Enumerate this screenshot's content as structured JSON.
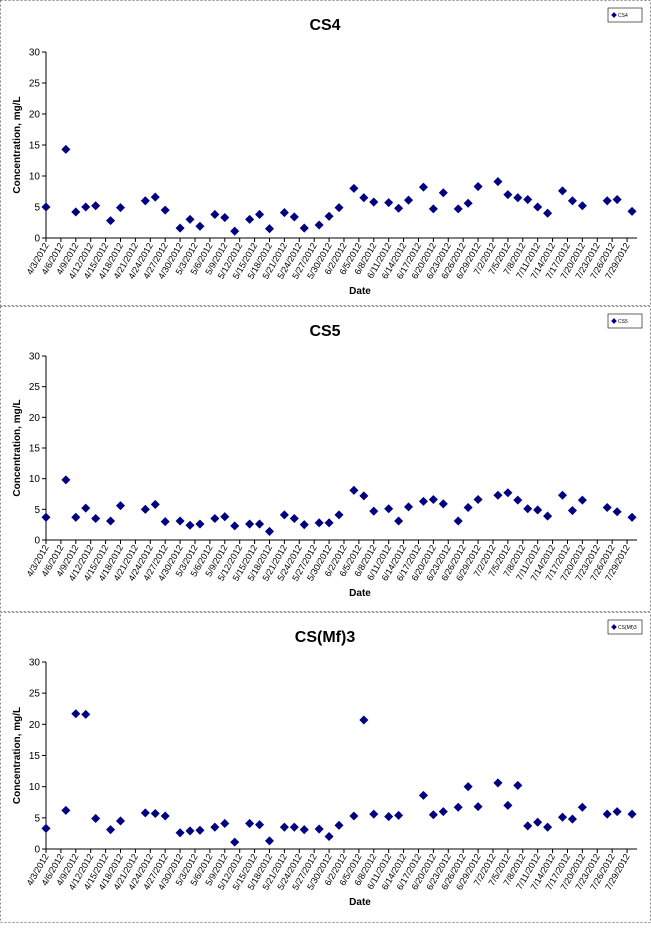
{
  "colors": {
    "marker": "#000080",
    "axis": "#000000",
    "frame": "#888888",
    "background": "#ffffff"
  },
  "chart_data": [
    {
      "type": "scatter",
      "title": "CS4",
      "xlabel": "Date",
      "ylabel": "Concentration, mg/L",
      "legend": "CS4",
      "legend_position": "top-right",
      "grid": false,
      "ylim": [
        0,
        30
      ],
      "yticks": [
        "0",
        "5",
        "10",
        "15",
        "20",
        "25",
        "30"
      ],
      "xticks": [
        "4/3/2012",
        "4/6/2012",
        "4/9/2012",
        "4/12/2012",
        "4/15/2012",
        "4/18/2012",
        "4/21/2012",
        "4/24/2012",
        "4/27/2012",
        "4/30/2012",
        "5/3/2012",
        "5/6/2012",
        "5/9/2012",
        "5/12/2012",
        "5/15/2012",
        "5/18/2012",
        "5/21/2012",
        "5/24/2012",
        "5/27/2012",
        "5/30/2012",
        "6/2/2012",
        "6/5/2012",
        "6/8/2012",
        "6/11/2012",
        "6/14/2012",
        "6/17/2012",
        "6/20/2012",
        "6/23/2012",
        "6/26/2012",
        "6/29/2012",
        "7/2/2012",
        "7/5/2012",
        "7/8/2012",
        "7/11/2012",
        "7/14/2012",
        "7/17/2012",
        "7/20/2012",
        "7/23/2012",
        "7/26/2012",
        "7/29/2012"
      ],
      "points": [
        {
          "x": "4/3/2012",
          "y": 5.0
        },
        {
          "x": "4/7/2012",
          "y": 14.3
        },
        {
          "x": "4/9/2012",
          "y": 4.2
        },
        {
          "x": "4/11/2012",
          "y": 5.0
        },
        {
          "x": "4/13/2012",
          "y": 5.2
        },
        {
          "x": "4/16/2012",
          "y": 2.8
        },
        {
          "x": "4/18/2012",
          "y": 4.9
        },
        {
          "x": "4/23/2012",
          "y": 6.0
        },
        {
          "x": "4/25/2012",
          "y": 6.6
        },
        {
          "x": "4/27/2012",
          "y": 4.5
        },
        {
          "x": "4/30/2012",
          "y": 1.6
        },
        {
          "x": "5/2/2012",
          "y": 3.0
        },
        {
          "x": "5/4/2012",
          "y": 1.9
        },
        {
          "x": "5/7/2012",
          "y": 3.8
        },
        {
          "x": "5/9/2012",
          "y": 3.3
        },
        {
          "x": "5/11/2012",
          "y": 1.1
        },
        {
          "x": "5/14/2012",
          "y": 3.0
        },
        {
          "x": "5/16/2012",
          "y": 3.8
        },
        {
          "x": "5/18/2012",
          "y": 1.5
        },
        {
          "x": "5/21/2012",
          "y": 4.1
        },
        {
          "x": "5/23/2012",
          "y": 3.4
        },
        {
          "x": "5/25/2012",
          "y": 1.6
        },
        {
          "x": "5/28/2012",
          "y": 2.1
        },
        {
          "x": "5/30/2012",
          "y": 3.5
        },
        {
          "x": "6/1/2012",
          "y": 4.9
        },
        {
          "x": "6/4/2012",
          "y": 8.0
        },
        {
          "x": "6/6/2012",
          "y": 6.5
        },
        {
          "x": "6/8/2012",
          "y": 5.8
        },
        {
          "x": "6/11/2012",
          "y": 5.7
        },
        {
          "x": "6/13/2012",
          "y": 4.8
        },
        {
          "x": "6/15/2012",
          "y": 6.1
        },
        {
          "x": "6/18/2012",
          "y": 8.2
        },
        {
          "x": "6/20/2012",
          "y": 4.7
        },
        {
          "x": "6/22/2012",
          "y": 7.3
        },
        {
          "x": "6/25/2012",
          "y": 4.7
        },
        {
          "x": "6/27/2012",
          "y": 5.6
        },
        {
          "x": "6/29/2012",
          "y": 8.3
        },
        {
          "x": "7/3/2012",
          "y": 9.1
        },
        {
          "x": "7/5/2012",
          "y": 7.0
        },
        {
          "x": "7/7/2012",
          "y": 6.5
        },
        {
          "x": "7/9/2012",
          "y": 6.2
        },
        {
          "x": "7/11/2012",
          "y": 5.0
        },
        {
          "x": "7/13/2012",
          "y": 4.0
        },
        {
          "x": "7/16/2012",
          "y": 7.6
        },
        {
          "x": "7/18/2012",
          "y": 6.0
        },
        {
          "x": "7/20/2012",
          "y": 5.2
        },
        {
          "x": "7/25/2012",
          "y": 6.0
        },
        {
          "x": "7/27/2012",
          "y": 6.2
        },
        {
          "x": "7/30/2012",
          "y": 4.3
        }
      ]
    },
    {
      "type": "scatter",
      "title": "CS5",
      "xlabel": "Date",
      "ylabel": "Concentration, mg/L",
      "legend": "CS5",
      "legend_position": "top-right",
      "grid": false,
      "ylim": [
        0,
        30
      ],
      "yticks": [
        "0",
        "5",
        "10",
        "15",
        "20",
        "25",
        "30"
      ],
      "xticks": [
        "4/3/2012",
        "4/6/2012",
        "4/9/2012",
        "4/12/2012",
        "4/15/2012",
        "4/18/2012",
        "4/21/2012",
        "4/24/2012",
        "4/27/2012",
        "4/30/2012",
        "5/3/2012",
        "5/6/2012",
        "5/9/2012",
        "5/12/2012",
        "5/15/2012",
        "5/18/2012",
        "5/21/2012",
        "5/24/2012",
        "5/27/2012",
        "5/30/2012",
        "6/2/2012",
        "6/5/2012",
        "6/8/2012",
        "6/11/2012",
        "6/14/2012",
        "6/17/2012",
        "6/20/2012",
        "6/23/2012",
        "6/26/2012",
        "6/29/2012",
        "7/2/2012",
        "7/5/2012",
        "7/8/2012",
        "7/11/2012",
        "7/14/2012",
        "7/17/2012",
        "7/20/2012",
        "7/23/2012",
        "7/26/2012",
        "7/29/2012"
      ],
      "points": [
        {
          "x": "4/3/2012",
          "y": 3.7
        },
        {
          "x": "4/7/2012",
          "y": 9.8
        },
        {
          "x": "4/9/2012",
          "y": 3.7
        },
        {
          "x": "4/11/2012",
          "y": 5.2
        },
        {
          "x": "4/13/2012",
          "y": 3.5
        },
        {
          "x": "4/16/2012",
          "y": 3.1
        },
        {
          "x": "4/18/2012",
          "y": 5.6
        },
        {
          "x": "4/23/2012",
          "y": 5.0
        },
        {
          "x": "4/25/2012",
          "y": 5.8
        },
        {
          "x": "4/27/2012",
          "y": 3.0
        },
        {
          "x": "4/30/2012",
          "y": 3.1
        },
        {
          "x": "5/2/2012",
          "y": 2.4
        },
        {
          "x": "5/4/2012",
          "y": 2.6
        },
        {
          "x": "5/7/2012",
          "y": 3.5
        },
        {
          "x": "5/9/2012",
          "y": 3.8
        },
        {
          "x": "5/11/2012",
          "y": 2.3
        },
        {
          "x": "5/14/2012",
          "y": 2.6
        },
        {
          "x": "5/16/2012",
          "y": 2.6
        },
        {
          "x": "5/18/2012",
          "y": 1.4
        },
        {
          "x": "5/21/2012",
          "y": 4.1
        },
        {
          "x": "5/23/2012",
          "y": 3.5
        },
        {
          "x": "5/25/2012",
          "y": 2.5
        },
        {
          "x": "5/28/2012",
          "y": 2.8
        },
        {
          "x": "5/30/2012",
          "y": 2.8
        },
        {
          "x": "6/1/2012",
          "y": 4.1
        },
        {
          "x": "6/4/2012",
          "y": 8.1
        },
        {
          "x": "6/6/2012",
          "y": 7.2
        },
        {
          "x": "6/8/2012",
          "y": 4.7
        },
        {
          "x": "6/11/2012",
          "y": 5.1
        },
        {
          "x": "6/13/2012",
          "y": 3.1
        },
        {
          "x": "6/15/2012",
          "y": 5.4
        },
        {
          "x": "6/18/2012",
          "y": 6.3
        },
        {
          "x": "6/20/2012",
          "y": 6.6
        },
        {
          "x": "6/22/2012",
          "y": 5.9
        },
        {
          "x": "6/25/2012",
          "y": 3.1
        },
        {
          "x": "6/27/2012",
          "y": 5.3
        },
        {
          "x": "6/29/2012",
          "y": 6.6
        },
        {
          "x": "7/3/2012",
          "y": 7.3
        },
        {
          "x": "7/5/2012",
          "y": 7.7
        },
        {
          "x": "7/7/2012",
          "y": 6.5
        },
        {
          "x": "7/9/2012",
          "y": 5.1
        },
        {
          "x": "7/11/2012",
          "y": 4.9
        },
        {
          "x": "7/13/2012",
          "y": 3.9
        },
        {
          "x": "7/16/2012",
          "y": 7.3
        },
        {
          "x": "7/18/2012",
          "y": 4.8
        },
        {
          "x": "7/20/2012",
          "y": 6.5
        },
        {
          "x": "7/25/2012",
          "y": 5.3
        },
        {
          "x": "7/27/2012",
          "y": 4.6
        },
        {
          "x": "7/30/2012",
          "y": 3.7
        }
      ]
    },
    {
      "type": "scatter",
      "title": "CS(Mf)3",
      "xlabel": "Date",
      "ylabel": "Concentration, mg/L",
      "legend": "CS(Mf)3",
      "legend_position": "top-right",
      "grid": false,
      "ylim": [
        0,
        30
      ],
      "yticks": [
        "0",
        "5",
        "10",
        "15",
        "20",
        "25",
        "30"
      ],
      "xticks": [
        "4/3/2012",
        "4/6/2012",
        "4/9/2012",
        "4/12/2012",
        "4/15/2012",
        "4/18/2012",
        "4/21/2012",
        "4/24/2012",
        "4/27/2012",
        "4/30/2012",
        "5/3/2012",
        "5/6/2012",
        "5/9/2012",
        "5/12/2012",
        "5/15/2012",
        "5/18/2012",
        "5/21/2012",
        "5/24/2012",
        "5/27/2012",
        "5/30/2012",
        "6/2/2012",
        "6/5/2012",
        "6/8/2012",
        "6/11/2012",
        "6/14/2012",
        "6/17/2012",
        "6/20/2012",
        "6/23/2012",
        "6/26/2012",
        "6/29/2012",
        "7/2/2012",
        "7/5/2012",
        "7/8/2012",
        "7/11/2012",
        "7/14/2012",
        "7/17/2012",
        "7/20/2012",
        "7/23/2012",
        "7/26/2012",
        "7/29/2012"
      ],
      "points": [
        {
          "x": "4/3/2012",
          "y": 3.3
        },
        {
          "x": "4/7/2012",
          "y": 6.2
        },
        {
          "x": "4/9/2012",
          "y": 21.7
        },
        {
          "x": "4/11/2012",
          "y": 21.6
        },
        {
          "x": "4/13/2012",
          "y": 4.9
        },
        {
          "x": "4/16/2012",
          "y": 3.1
        },
        {
          "x": "4/18/2012",
          "y": 4.5
        },
        {
          "x": "4/23/2012",
          "y": 5.8
        },
        {
          "x": "4/25/2012",
          "y": 5.7
        },
        {
          "x": "4/27/2012",
          "y": 5.3
        },
        {
          "x": "4/30/2012",
          "y": 2.6
        },
        {
          "x": "5/2/2012",
          "y": 2.9
        },
        {
          "x": "5/4/2012",
          "y": 3.0
        },
        {
          "x": "5/7/2012",
          "y": 3.5
        },
        {
          "x": "5/9/2012",
          "y": 4.1
        },
        {
          "x": "5/11/2012",
          "y": 1.1
        },
        {
          "x": "5/14/2012",
          "y": 4.1
        },
        {
          "x": "5/16/2012",
          "y": 3.9
        },
        {
          "x": "5/18/2012",
          "y": 1.3
        },
        {
          "x": "5/21/2012",
          "y": 3.5
        },
        {
          "x": "5/23/2012",
          "y": 3.5
        },
        {
          "x": "5/25/2012",
          "y": 3.1
        },
        {
          "x": "5/28/2012",
          "y": 3.2
        },
        {
          "x": "5/30/2012",
          "y": 2.0
        },
        {
          "x": "6/1/2012",
          "y": 3.8
        },
        {
          "x": "6/4/2012",
          "y": 5.3
        },
        {
          "x": "6/6/2012",
          "y": 20.7
        },
        {
          "x": "6/8/2012",
          "y": 5.6
        },
        {
          "x": "6/11/2012",
          "y": 5.2
        },
        {
          "x": "6/13/2012",
          "y": 5.4
        },
        {
          "x": "6/18/2012",
          "y": 8.6
        },
        {
          "x": "6/20/2012",
          "y": 5.5
        },
        {
          "x": "6/22/2012",
          "y": 6.0
        },
        {
          "x": "6/25/2012",
          "y": 6.7
        },
        {
          "x": "6/27/2012",
          "y": 10.0
        },
        {
          "x": "6/29/2012",
          "y": 6.8
        },
        {
          "x": "7/3/2012",
          "y": 10.6
        },
        {
          "x": "7/5/2012",
          "y": 7.0
        },
        {
          "x": "7/7/2012",
          "y": 10.2
        },
        {
          "x": "7/9/2012",
          "y": 3.7
        },
        {
          "x": "7/11/2012",
          "y": 4.3
        },
        {
          "x": "7/13/2012",
          "y": 3.5
        },
        {
          "x": "7/16/2012",
          "y": 5.1
        },
        {
          "x": "7/18/2012",
          "y": 4.8
        },
        {
          "x": "7/20/2012",
          "y": 6.7
        },
        {
          "x": "7/25/2012",
          "y": 5.6
        },
        {
          "x": "7/27/2012",
          "y": 6.0
        },
        {
          "x": "7/30/2012",
          "y": 5.6
        }
      ]
    }
  ]
}
